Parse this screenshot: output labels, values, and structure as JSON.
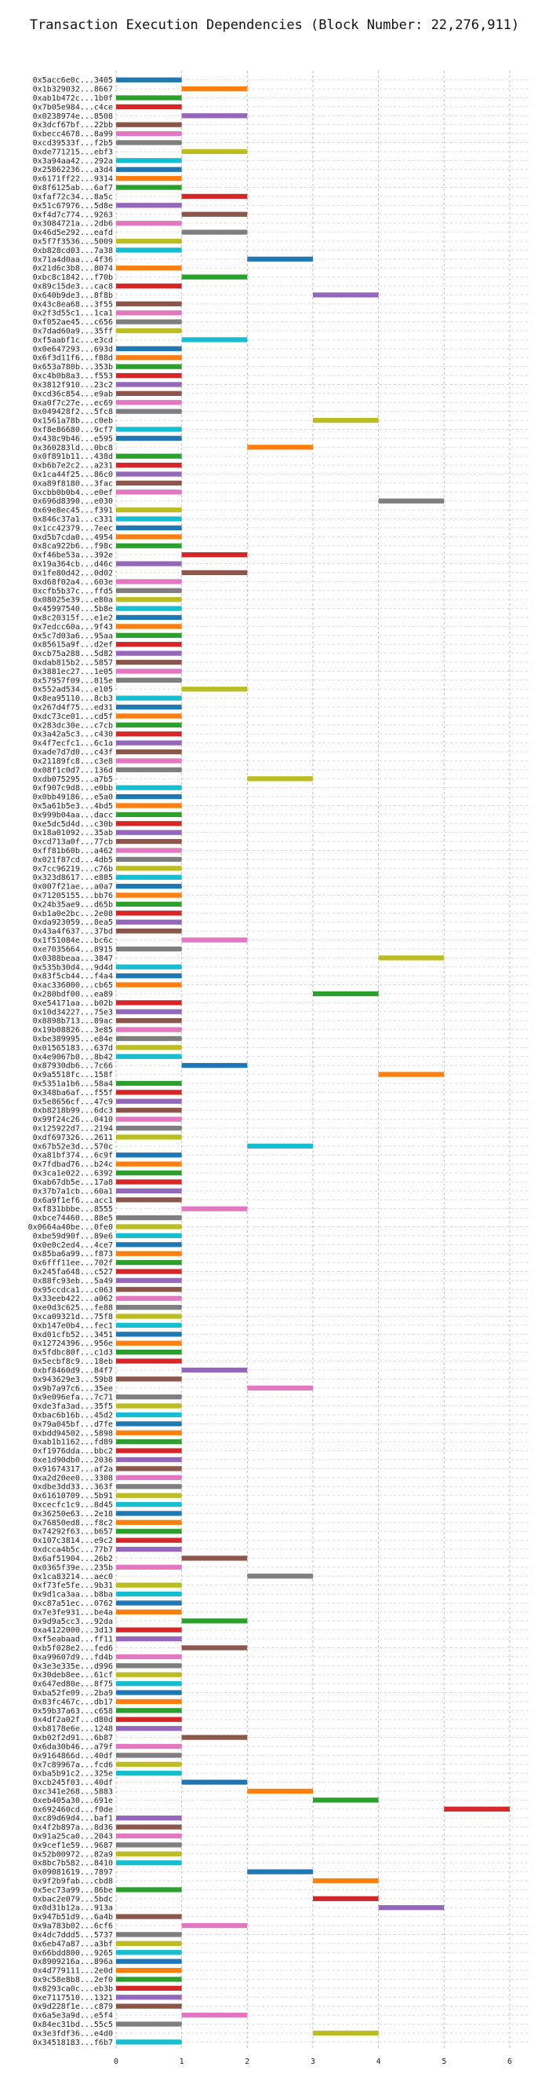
{
  "chart_data": {
    "type": "bar",
    "orientation": "horizontal",
    "title": "Transaction Execution Dependencies (Block Number: 22,276,911)",
    "xlabel": "",
    "ylabel": "",
    "xlim": [
      0,
      6.3
    ],
    "xticks": [
      0,
      1,
      2,
      3,
      4,
      5,
      6
    ],
    "grid": true,
    "legend": "none",
    "palette": [
      "#1f77b4",
      "#ff7f0e",
      "#2ca02c",
      "#d62728",
      "#9467bd",
      "#8c564b",
      "#e377c2",
      "#7f7f7f",
      "#bcbd22",
      "#17becf"
    ],
    "categories": [
      "0x5acc6e0c...3405",
      "0x1b329032...8667",
      "0xab1b472c...1b0f",
      "0x7b05e984...c4ce",
      "0x0238974e...8508",
      "0x3dcf67bf...22bb",
      "0xbecc4678...8a99",
      "0xcd39533f...f2b5",
      "0xde771215...ebf3",
      "0x3a94aa42...292a",
      "0x25862236...a3d4",
      "0x6171ff22...9314",
      "0x8f6125ab...6af7",
      "0xfaf72c34...8a5c",
      "0x51c67976...5d8e",
      "0xf4d7c774...9263",
      "0x3084721a...2db6",
      "0x46d5e292...eafd",
      "0x5f7f3536...5009",
      "0xb828cd03...7a38",
      "0x71a4d0aa...4f36",
      "0x21d6c3b8...8074",
      "0xbc8c1842...f70b",
      "0x89c15de3...cac8",
      "0x640b9de3...8f8b",
      "0x43c8ea68...3f55",
      "0x2f3d55c1...1ca1",
      "0xf052ae45...c656",
      "0x7dad60a9...35ff",
      "0xf5aabf1c...e3cd",
      "0x0e647293...693d",
      "0x6f3d11f6...f88d",
      "0x653a780b...353b",
      "0xc4b0b8a3...f553",
      "0x3812f910...23c2",
      "0xcd36c854...e9ab",
      "0xa0f7c27e...ec69",
      "0x049428f2...5fc8",
      "0x1561a78b...c0eb",
      "0xf8e86680...9cf7",
      "0x438c9b46...e595",
      "0x360283ld...0bc8",
      "0x0f891b11...438d",
      "0xb6b7e2c2...a231",
      "0x1ca44f25...86c0",
      "0xa89f8180...3fac",
      "0xcbb0b0b4...e0ef",
      "0x696d8390...e030",
      "0x69e8ec45...f391",
      "0x846c37a1...c331",
      "0x1cc42379...7eec",
      "0xd5b7cda0...4954",
      "0x8ca922b6...f98c",
      "0xf46be53a...392e",
      "0x19a364cb...d46c",
      "0x1fe80d42...0d02",
      "0xd68f02a4...603e",
      "0xcfb5b37c...ffd5",
      "0x08025e39...e80a",
      "0x45997540...5b8e",
      "0x8c20315f...e1e2",
      "0x7edcc60a...9f43",
      "0x5c7d03a6...95aa",
      "0x85615a9f...d2ef",
      "0xcb75a288...5d82",
      "0xdab815b2...5857",
      "0x3881ec27...1e05",
      "0x57957f09...815e",
      "0x552ad534...e105",
      "0x8ea95110...8cb3",
      "0x267d4f75...ed31",
      "0xdc73ce01...cd5f",
      "0x283dc30e...c7cb",
      "0x3a42a5c3...c430",
      "0x4f7ecfc1...6c1a",
      "0xade7d7d0...c43f",
      "0x21189fc8...c3e8",
      "0x08f1c0d7...136d",
      "0xdb075295...a7b5",
      "0xf907c9d8...e0bb",
      "0x0bb49186...e5a0",
      "0x5a61b5e3...4bd5",
      "0x999b04aa...dacc",
      "0xe5dc5d4d...c30b",
      "0x18a01092...35ab",
      "0xcd713a0f...77cb",
      "0xff81b60b...a462",
      "0x021f87cd...4db5",
      "0x7cc96219...c76b",
      "0x323d8617...e885",
      "0x007f21ae...a0a7",
      "0x71205155...bb76",
      "0x24b35ae9...d65b",
      "0xb1a0e2bc...2e08",
      "0xda923059...8ea5",
      "0x43a4f637...37bd",
      "0x1f51084e...bc6c",
      "0xe7035664...8915",
      "0x0388beaa...3847",
      "0x535b30d4...9d4d",
      "0x83f5cb44...f4a4",
      "0xac336000...cb65",
      "0x280bdf00...ea89",
      "0xe54171aa...b02b",
      "0x10d34227...75e3",
      "0x8898b713...89ac",
      "0x19b08826...3e85",
      "0xbe389995...e84e",
      "0x01565183...637d",
      "0x4e9067b0...8b42",
      "0x87930db6...7c66",
      "0x9a5518fc...158f",
      "0x5351a1b6...58a4",
      "0x348ba6af...f55f",
      "0x5e8656cf...47c9",
      "0xb8218b99...6dc3",
      "0x99f24c26...0410",
      "0x125922d7...2194",
      "0xdf697326...2611",
      "0x67b52e3d...570c",
      "0xa81bf374...6c9f",
      "0x7fdbad76...b24c",
      "0x3ca1e022...6392",
      "0xab67db5e...17a8",
      "0x37b7a1cb...60a1",
      "0x6a9f1ef6...acc1",
      "0xf831bbbe...8555",
      "0xbce74460...88e5",
      "0x0664a40be...0fe0",
      "0xbe59d90f...89e6",
      "0x0e0c2ed4...4ce7",
      "0x85ba6a99...f873",
      "0x6fff11ee...702f",
      "0x245fa648...c527",
      "0x88fc93eb...5a49",
      "0x95ccdca1...c063",
      "0x33eeb422...a062",
      "0xe0d3c625...fe88",
      "0xca09321d...75f8",
      "0xb147e0b4...fec1",
      "0xd01cfb52...3451",
      "0x12724396...956e",
      "0x5fdbc80f...c1d3",
      "0x5ecbf8c9...18eb",
      "0xbf8460d9...84f7",
      "0x943629e3...59b8",
      "0x9b7a97c6...35ee",
      "0x9e096efa...7c71",
      "0xde3fa3ad...35f5",
      "0xbac6b16b...45d2",
      "0x79a045bf...d7fe",
      "0xbdd94502...5898",
      "0xab1b1162...fd89",
      "0xf1976dda...bbc2",
      "0xe1d90db0...2036",
      "0x91674317...af2a",
      "0xa2d20ee0...3308",
      "0xdbe3dd33...363f",
      "0x61610709...5b91",
      "0xcecfc1c9...8d45",
      "0x36250e63...2e18",
      "0x76850ed8...f8c2",
      "0x74292f63...b657",
      "0x107c3814...e9c2",
      "0xdcca4b5c...77b7",
      "0x6af51904...26b2",
      "0x0365f39e...235b",
      "0x1ca83214...aec0",
      "0xf73fe5fe...9b31",
      "0x9d1ca3aa...b8ba",
      "0xc87a51ec...0762",
      "0x7e3fe931...be4a",
      "0x9d9a5cc3...92da",
      "0xa4122000...3d13",
      "0xf5eabaad...ff11",
      "0xb5f028e2...fed6",
      "0xa99607d9...fd4b",
      "0x3e3e335e...d996",
      "0x30deb8ee...61cf",
      "0x647ed80e...8f75",
      "0xba52fe09...2ba9",
      "0x83fc467c...db17",
      "0x59b37a63...c658",
      "0x4df2a02f...d80d",
      "0xb8178e6e...1248",
      "0xb02f2d91...6b87",
      "0x6da30b46...a79f",
      "0x9164866d...40df",
      "0x7c89967a...fcd6",
      "0xba5b91c2...325e",
      "0xcb245f03...40df",
      "0xc341e268...5883",
      "0xeb405a30...691e",
      "0x692460cd...f0de",
      "0xc89d69d4...baf1",
      "0x4f2b897a...8d36",
      "0x91a25ca0...2043",
      "0x9cef1e59...9687",
      "0x52b00972...82a9",
      "0x8bc7b582...8410",
      "0x09081619...7897",
      "0x9f2b9fab...cbd8",
      "0x5ec73a99...86be",
      "0xbac2e079...5bdc",
      "0x0d31b12a...913a",
      "0x947b51d9...6a4b",
      "0x9a783b02...6cf6",
      "0x4dc7ddd5...5737",
      "0x6eb47a87...a3bf",
      "0x66bdd800...9265",
      "0x8909216a...896a",
      "0x4d779111...2e0d",
      "0x9c58e8b8...2ef0",
      "0x8293ca0c...eb3b",
      "0xe7117510...1321",
      "0x9d228f1e...c879",
      "0x6a5e3a9d...e5f4",
      "0x84ec31bd...55c5",
      "0x3e3fdf36...e4d0",
      "0x34518183...f6b7"
    ],
    "starts": [
      0,
      1,
      0,
      0,
      1,
      0,
      0,
      0,
      1,
      0,
      0,
      0,
      0,
      1,
      0,
      1,
      0,
      1,
      0,
      0,
      2,
      0,
      1,
      0,
      3,
      0,
      0,
      0,
      0,
      1,
      0,
      0,
      0,
      0,
      0,
      0,
      0,
      0,
      3,
      0,
      0,
      2,
      0,
      0,
      0,
      0,
      0,
      4,
      0,
      0,
      0,
      0,
      0,
      1,
      0,
      1,
      0,
      0,
      0,
      0,
      0,
      0,
      0,
      0,
      0,
      0,
      0,
      0,
      1,
      0,
      0,
      0,
      0,
      0,
      0,
      0,
      0,
      0,
      2,
      0,
      0,
      0,
      0,
      0,
      0,
      0,
      0,
      0,
      0,
      0,
      0,
      0,
      0,
      0,
      0,
      0,
      1,
      0,
      4,
      0,
      0,
      0,
      3,
      0,
      0,
      0,
      0,
      0,
      0,
      0,
      1,
      4,
      0,
      0,
      0,
      0,
      0,
      0,
      0,
      2,
      0,
      0,
      0,
      0,
      0,
      0,
      1,
      0,
      0,
      0,
      0,
      0,
      0,
      0,
      0,
      0,
      0,
      0,
      0,
      0,
      0,
      0,
      0,
      0,
      1,
      0,
      2,
      0,
      0,
      0,
      0,
      0,
      0,
      0,
      0,
      0,
      0,
      0,
      0,
      0,
      0,
      0,
      0,
      0,
      0,
      1,
      0,
      2,
      0,
      0,
      0,
      0,
      1,
      0,
      0,
      1,
      0,
      0,
      0,
      0,
      0,
      0,
      0,
      0,
      0,
      1,
      0,
      0,
      0,
      0,
      1,
      2,
      3,
      5,
      0,
      0,
      0,
      0,
      0,
      0,
      2,
      3,
      0,
      3,
      4,
      0,
      1,
      0,
      0,
      0,
      0,
      0,
      0,
      0,
      0,
      0,
      1,
      0,
      3,
      0
    ],
    "series_colors": [
      0,
      1,
      2,
      3,
      4,
      5,
      6,
      7,
      8,
      9,
      0,
      1,
      2,
      3,
      4,
      5,
      6,
      7,
      8,
      9,
      0,
      1,
      2,
      3,
      4,
      5,
      6,
      7,
      8,
      9,
      0,
      1,
      2,
      3,
      4,
      5,
      6,
      7,
      8,
      9,
      0,
      1,
      2,
      3,
      4,
      5,
      6,
      7,
      8,
      9,
      0,
      1,
      2,
      3,
      4,
      5,
      6,
      7,
      8,
      9,
      0,
      1,
      2,
      3,
      4,
      5,
      6,
      7,
      8,
      9,
      0,
      1,
      2,
      3,
      4,
      5,
      6,
      7,
      8,
      9,
      0,
      1,
      2,
      3,
      4,
      5,
      6,
      7,
      8,
      9,
      0,
      1,
      2,
      3,
      4,
      5,
      6,
      7,
      8,
      9,
      0,
      1,
      2,
      3,
      4,
      5,
      6,
      7,
      8,
      9,
      0,
      1,
      2,
      3,
      4,
      5,
      6,
      7,
      8,
      9,
      0,
      1,
      2,
      3,
      4,
      5,
      6,
      7,
      8,
      9,
      0,
      1,
      2,
      3,
      4,
      5,
      6,
      7,
      8,
      9,
      0,
      1,
      2,
      3,
      4,
      5,
      6,
      7,
      8,
      9,
      0,
      1,
      2,
      3,
      4,
      5,
      6,
      7,
      8,
      9,
      0,
      1,
      2,
      3,
      4,
      5,
      6,
      7,
      8,
      9,
      0,
      1,
      2,
      3,
      4,
      5,
      6,
      7,
      8,
      9,
      0,
      1,
      2,
      3,
      4,
      5,
      6,
      7,
      8,
      9,
      0,
      1,
      2,
      3,
      4,
      5,
      6,
      7,
      8,
      9,
      0,
      1,
      2,
      3,
      4,
      5,
      6,
      7,
      8,
      9,
      0,
      1,
      2,
      3,
      4,
      5,
      6,
      7,
      8,
      9
    ],
    "duration": 1
  }
}
